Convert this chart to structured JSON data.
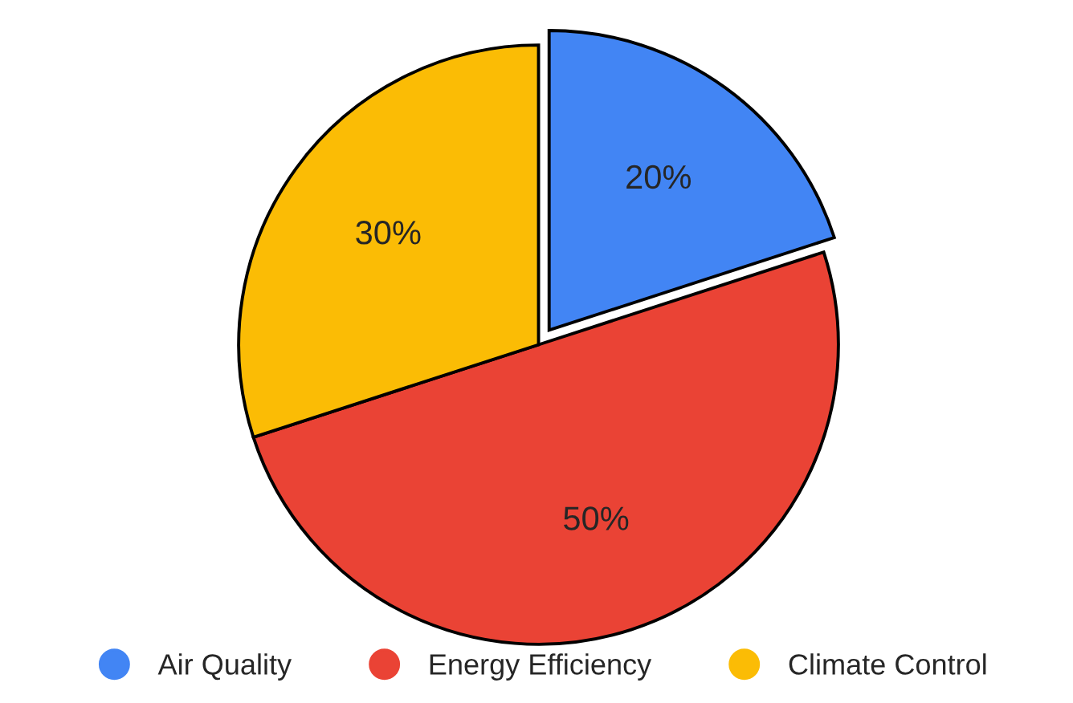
{
  "chart_data": {
    "type": "pie",
    "categories": [
      "Air Quality",
      "Energy Efficiency",
      "Climate Control"
    ],
    "values": [
      20,
      50,
      30
    ],
    "colors": [
      "#4285f4",
      "#ea4335",
      "#fbbc05"
    ],
    "value_labels": [
      "20%",
      "50%",
      "30%"
    ],
    "legend": "bottom"
  }
}
